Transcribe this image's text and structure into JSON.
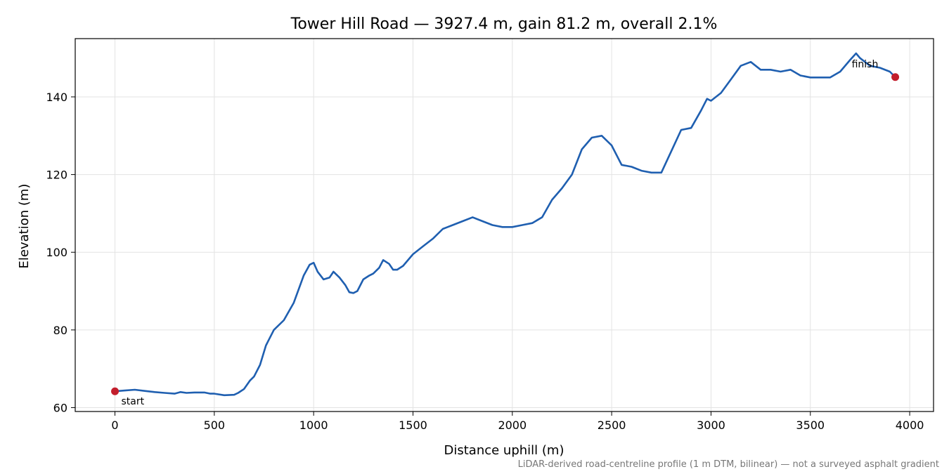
{
  "chart_data": {
    "type": "line",
    "title": "Tower Hill Road — 3927.4 m, gain 81.2 m, overall 2.1%",
    "xlabel": "Distance uphill (m)",
    "ylabel": "Elevation (m)",
    "xlim": [
      -200,
      4120
    ],
    "ylim": [
      59,
      155
    ],
    "xticks": [
      0,
      500,
      1000,
      1500,
      2000,
      2500,
      3000,
      3500,
      4000
    ],
    "yticks": [
      60,
      80,
      100,
      120,
      140
    ],
    "grid": true,
    "line_color": "#1f5fb0",
    "marker_color": "#c21e2c",
    "series": [
      {
        "x": [
          0,
          50,
          100,
          150,
          200,
          250,
          300,
          330,
          360,
          400,
          450,
          480,
          500,
          550,
          600,
          620,
          650,
          680,
          700,
          730,
          760,
          800,
          850,
          900,
          950,
          980,
          1000,
          1020,
          1050,
          1080,
          1100,
          1130,
          1160,
          1180,
          1200,
          1220,
          1250,
          1280,
          1300,
          1330,
          1350,
          1380,
          1400,
          1420,
          1450,
          1500,
          1550,
          1600,
          1650,
          1700,
          1750,
          1800,
          1850,
          1900,
          1950,
          2000,
          2050,
          2100,
          2150,
          2200,
          2250,
          2300,
          2350,
          2400,
          2450,
          2500,
          2550,
          2600,
          2650,
          2700,
          2750,
          2800,
          2850,
          2900,
          2950,
          2980,
          3000,
          3050,
          3100,
          3150,
          3200,
          3250,
          3300,
          3350,
          3400,
          3450,
          3500,
          3550,
          3600,
          3650,
          3700,
          3730,
          3750,
          3800,
          3850,
          3900,
          3927.4
        ],
        "y": [
          64.2,
          64.4,
          64.6,
          64.3,
          64.0,
          63.8,
          63.6,
          64.0,
          63.8,
          63.9,
          63.9,
          63.6,
          63.6,
          63.2,
          63.3,
          63.8,
          64.8,
          67.0,
          68.0,
          71.0,
          76.0,
          80.0,
          82.5,
          87.0,
          94.0,
          96.8,
          97.3,
          95.0,
          93.0,
          93.5,
          95.0,
          93.5,
          91.5,
          89.7,
          89.5,
          90.0,
          93.0,
          94.0,
          94.5,
          96.0,
          98.0,
          97.0,
          95.5,
          95.5,
          96.5,
          99.5,
          101.5,
          103.5,
          106.0,
          107.0,
          108.0,
          109.0,
          108.0,
          107.0,
          106.5,
          106.5,
          107.0,
          107.5,
          109.0,
          113.5,
          116.5,
          120.0,
          126.5,
          129.5,
          130.0,
          127.5,
          122.5,
          122.0,
          121.0,
          120.5,
          120.5,
          126.0,
          131.5,
          132.0,
          136.5,
          139.5,
          139.0,
          141.0,
          144.5,
          148.0,
          149.0,
          147.0,
          147.0,
          146.5,
          147.0,
          145.5,
          145.0,
          145.0,
          145.0,
          146.5,
          149.5,
          151.2,
          150.0,
          148.0,
          147.5,
          146.5,
          145.1
        ]
      }
    ],
    "annotations": [
      {
        "text": "start",
        "x": 0,
        "y": 64.2
      },
      {
        "text": "finish",
        "x": 3927.4,
        "y": 145.1
      }
    ],
    "footnote": "LiDAR-derived road-centreline profile (1 m DTM, bilinear) — not a surveyed asphalt gradient"
  }
}
